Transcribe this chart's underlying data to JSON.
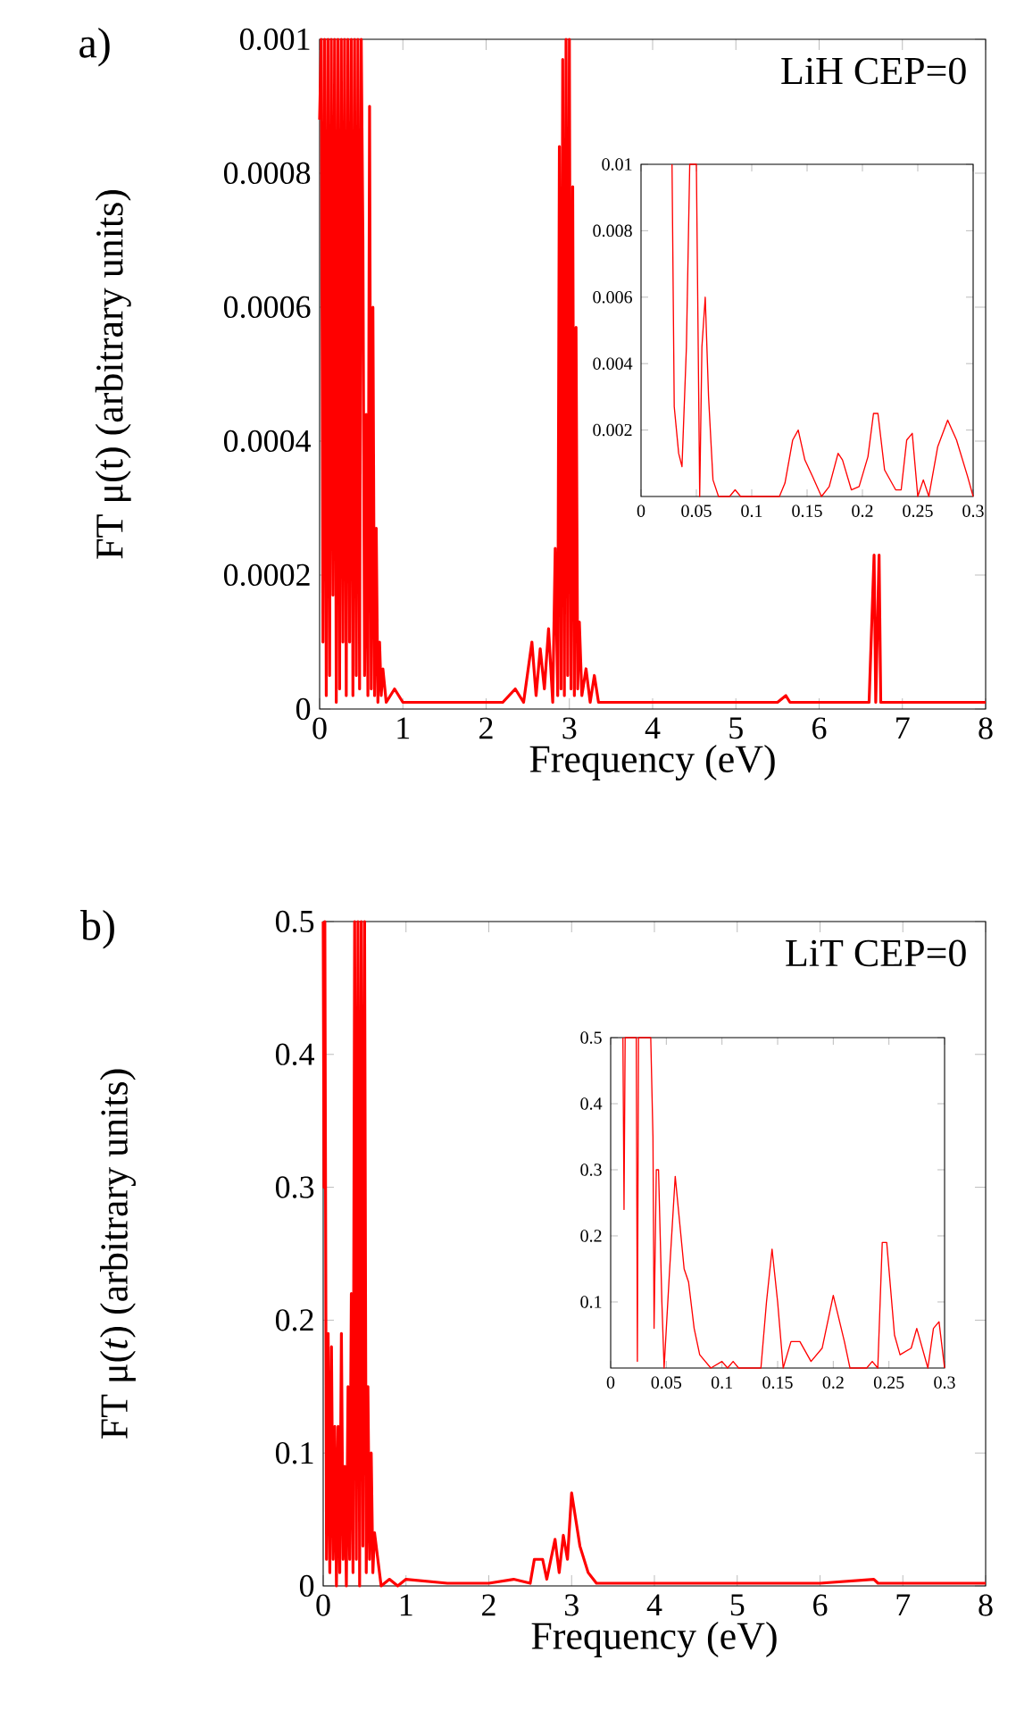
{
  "chart_data": [
    {
      "type": "line",
      "color": "#ff0000",
      "xlabel": "Frequency (eV)",
      "ylabel": "FT μ(t) (arbitrary units)",
      "annotations": [
        "a)",
        "LiH CEP=0"
      ],
      "xlim": [
        0,
        8
      ],
      "ylim": [
        0,
        0.001
      ],
      "xticks": [
        0,
        1,
        2,
        3,
        4,
        5,
        6,
        7,
        8
      ],
      "yticks": [
        0,
        0.0002,
        0.0004,
        0.0006,
        0.0008,
        0.001
      ],
      "x": [
        0,
        0.02,
        0.04,
        0.06,
        0.08,
        0.1,
        0.12,
        0.14,
        0.16,
        0.18,
        0.2,
        0.22,
        0.24,
        0.26,
        0.28,
        0.3,
        0.32,
        0.34,
        0.36,
        0.38,
        0.4,
        0.42,
        0.44,
        0.46,
        0.48,
        0.5,
        0.52,
        0.54,
        0.56,
        0.58,
        0.6,
        0.62,
        0.64,
        0.66,
        0.68,
        0.7,
        0.72,
        0.74,
        0.76,
        0.8,
        0.9,
        1.0,
        1.2,
        1.5,
        2.0,
        2.2,
        2.35,
        2.45,
        2.55,
        2.6,
        2.65,
        2.7,
        2.75,
        2.8,
        2.83,
        2.86,
        2.88,
        2.9,
        2.92,
        2.94,
        2.96,
        2.98,
        3.0,
        3.02,
        3.04,
        3.06,
        3.08,
        3.1,
        3.12,
        3.15,
        3.2,
        3.25,
        3.3,
        3.35,
        3.5,
        4.0,
        5.0,
        5.5,
        5.6,
        5.65,
        6.0,
        6.6,
        6.66,
        6.68,
        6.72,
        6.74,
        7.0,
        8.0
      ],
      "values": [
        0.00088,
        0.001,
        0.0001,
        0.001,
        2e-05,
        0.001,
        5e-05,
        0.001,
        0.00017,
        0.001,
        1e-05,
        0.001,
        3e-05,
        0.001,
        0.0001,
        0.001,
        2e-05,
        0.001,
        0.0001,
        0.001,
        2e-05,
        0.001,
        5e-05,
        0.001,
        3e-05,
        0.001,
        0.0007,
        5e-05,
        0.00044,
        2e-05,
        0.0009,
        3e-05,
        0.0006,
        2e-05,
        0.00027,
        1e-05,
        0.0001,
        2e-05,
        6e-05,
        1e-05,
        3e-05,
        1e-05,
        1e-05,
        1e-05,
        1e-05,
        1e-05,
        3e-05,
        1e-05,
        0.0001,
        2e-05,
        9e-05,
        3e-05,
        0.00012,
        1e-05,
        0.00024,
        2e-05,
        0.00084,
        3e-05,
        0.00097,
        2e-05,
        0.001,
        5e-05,
        0.001,
        3e-05,
        0.00078,
        2e-05,
        0.00057,
        3e-05,
        0.00013,
        2e-05,
        6e-05,
        1e-05,
        5e-05,
        1e-05,
        1e-05,
        1e-05,
        1e-05,
        1e-05,
        2e-05,
        1e-05,
        1e-05,
        1e-05,
        0.00023,
        1e-05,
        0.00023,
        1e-05,
        1e-05,
        1e-05
      ]
    },
    {
      "type": "line",
      "color": "#ff0000",
      "xlim": [
        0,
        0.3
      ],
      "ylim": [
        0,
        0.01
      ],
      "xticks": [
        0,
        0.05,
        0.1,
        0.15,
        0.2,
        0.25,
        0.3
      ],
      "yticks": [
        0.002,
        0.004,
        0.006,
        0.008,
        0.01
      ],
      "x": [
        0.028,
        0.03,
        0.034,
        0.037,
        0.041,
        0.044,
        0.05,
        0.053,
        0.055,
        0.058,
        0.061,
        0.065,
        0.07,
        0.08,
        0.085,
        0.09,
        0.1,
        0.11,
        0.125,
        0.13,
        0.137,
        0.142,
        0.148,
        0.155,
        0.163,
        0.17,
        0.178,
        0.182,
        0.19,
        0.197,
        0.205,
        0.21,
        0.214,
        0.22,
        0.23,
        0.235,
        0.24,
        0.245,
        0.25,
        0.255,
        0.26,
        0.268,
        0.277,
        0.285,
        0.295,
        0.3
      ],
      "values": [
        0.01,
        0.0027,
        0.0013,
        0.0009,
        0.0045,
        0.01,
        0.01,
        0.0,
        0.0045,
        0.006,
        0.003,
        0.0005,
        0.0,
        0.0,
        0.0002,
        0.0,
        0.0,
        0.0,
        0.0,
        0.0004,
        0.0017,
        0.002,
        0.0011,
        0.0006,
        0.0,
        0.0003,
        0.0013,
        0.0011,
        0.0002,
        0.0003,
        0.0012,
        0.0025,
        0.0025,
        0.0008,
        0.0002,
        0.0002,
        0.0017,
        0.0019,
        0.0,
        0.0005,
        0.0,
        0.0015,
        0.0023,
        0.0017,
        0.0006,
        0.0
      ]
    },
    {
      "type": "line",
      "color": "#ff0000",
      "xlabel": "Frequency (eV)",
      "ylabel": "FT μ(*t*) (arbitrary units)",
      "annotations": [
        "b)",
        "LiT CEP=0"
      ],
      "xlim": [
        0,
        8
      ],
      "ylim": [
        0,
        0.5
      ],
      "xticks": [
        0,
        1,
        2,
        3,
        4,
        5,
        6,
        7,
        8
      ],
      "yticks": [
        0,
        0.1,
        0.2,
        0.3,
        0.4,
        0.5
      ],
      "x": [
        0,
        0.01,
        0.02,
        0.04,
        0.06,
        0.08,
        0.1,
        0.12,
        0.14,
        0.16,
        0.18,
        0.2,
        0.22,
        0.24,
        0.26,
        0.28,
        0.3,
        0.32,
        0.34,
        0.36,
        0.38,
        0.4,
        0.42,
        0.44,
        0.46,
        0.48,
        0.5,
        0.52,
        0.54,
        0.56,
        0.58,
        0.6,
        0.62,
        0.66,
        0.7,
        0.8,
        0.9,
        1.0,
        1.5,
        2.0,
        2.3,
        2.5,
        2.55,
        2.65,
        2.7,
        2.8,
        2.85,
        2.9,
        2.95,
        3.0,
        3.05,
        3.1,
        3.2,
        3.3,
        4.0,
        5.0,
        6.0,
        6.65,
        6.7,
        8.0
      ],
      "values": [
        0.5,
        0.3,
        0.5,
        0.02,
        0.19,
        0.01,
        0.18,
        0.02,
        0.12,
        0.0,
        0.12,
        0.01,
        0.19,
        0.02,
        0.09,
        0.0,
        0.15,
        0.02,
        0.22,
        0.01,
        0.5,
        0.02,
        0.5,
        0.0,
        0.5,
        0.03,
        0.5,
        0.01,
        0.15,
        0.02,
        0.1,
        0.01,
        0.04,
        0.02,
        0.0,
        0.005,
        0.0,
        0.005,
        0.002,
        0.002,
        0.005,
        0.002,
        0.02,
        0.02,
        0.005,
        0.035,
        0.01,
        0.038,
        0.02,
        0.07,
        0.05,
        0.03,
        0.01,
        0.002,
        0.002,
        0.002,
        0.002,
        0.005,
        0.002,
        0.002
      ]
    },
    {
      "type": "line",
      "color": "#ff0000",
      "xlim": [
        0,
        0.3
      ],
      "ylim": [
        0,
        0.5
      ],
      "xticks": [
        0,
        0.05,
        0.1,
        0.15,
        0.2,
        0.25,
        0.3
      ],
      "yticks": [
        0.1,
        0.2,
        0.3,
        0.4,
        0.5
      ],
      "x": [
        0.011,
        0.012,
        0.013,
        0.02,
        0.023,
        0.024,
        0.025,
        0.036,
        0.038,
        0.039,
        0.041,
        0.043,
        0.046,
        0.048,
        0.053,
        0.058,
        0.062,
        0.066,
        0.07,
        0.075,
        0.08,
        0.09,
        0.1,
        0.105,
        0.11,
        0.115,
        0.135,
        0.14,
        0.145,
        0.15,
        0.155,
        0.162,
        0.17,
        0.18,
        0.19,
        0.2,
        0.21,
        0.215,
        0.23,
        0.235,
        0.24,
        0.244,
        0.248,
        0.255,
        0.26,
        0.27,
        0.275,
        0.28,
        0.285,
        0.29,
        0.295,
        0.3
      ],
      "values": [
        0.5,
        0.24,
        0.5,
        0.5,
        0.5,
        0.01,
        0.5,
        0.5,
        0.35,
        0.06,
        0.3,
        0.3,
        0.1,
        0.0,
        0.15,
        0.29,
        0.22,
        0.15,
        0.13,
        0.06,
        0.02,
        0.0,
        0.01,
        0.0,
        0.01,
        0.0,
        0.0,
        0.1,
        0.18,
        0.1,
        0.0,
        0.04,
        0.04,
        0.01,
        0.03,
        0.11,
        0.04,
        0.0,
        0.0,
        0.01,
        0.0,
        0.19,
        0.19,
        0.05,
        0.02,
        0.03,
        0.06,
        0.03,
        0.0,
        0.06,
        0.07,
        0.0
      ]
    }
  ]
}
